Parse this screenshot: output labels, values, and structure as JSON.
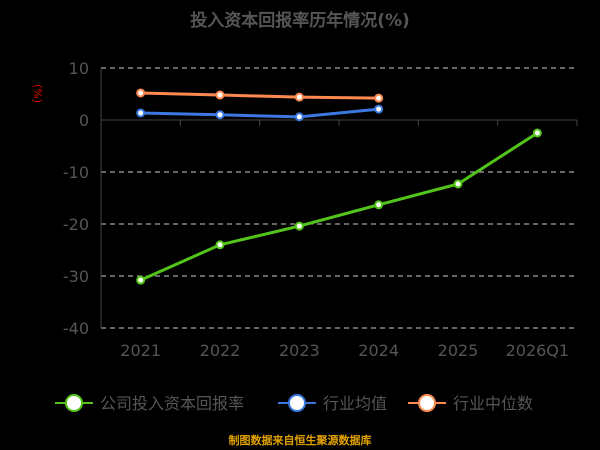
{
  "chart_data": {
    "type": "line",
    "title": "投入资本回报率历年情况(%)",
    "ylabel": "(%)",
    "categories": [
      "2021",
      "2022",
      "2023",
      "2024",
      "2025",
      "2026Q1"
    ],
    "ylim": [
      -40,
      10
    ],
    "yticks": [
      10,
      0,
      -10,
      -20,
      -30,
      -40
    ],
    "grid": true,
    "legend_position": "bottom",
    "series": [
      {
        "name": "公司投入资本回报率",
        "color": "#52c41a",
        "values": [
          -30.8,
          -24.0,
          -20.4,
          -16.3,
          -12.3,
          -2.5
        ]
      },
      {
        "name": "行业均值",
        "color": "#3a78e0",
        "values": [
          1.35,
          1.0,
          0.6,
          2.1,
          null,
          null
        ]
      },
      {
        "name": "行业中位数",
        "color": "#ff8a50",
        "values": [
          5.2,
          4.8,
          4.4,
          4.2,
          null,
          null
        ]
      }
    ]
  },
  "source": "制图数据来自恒生聚源数据库"
}
